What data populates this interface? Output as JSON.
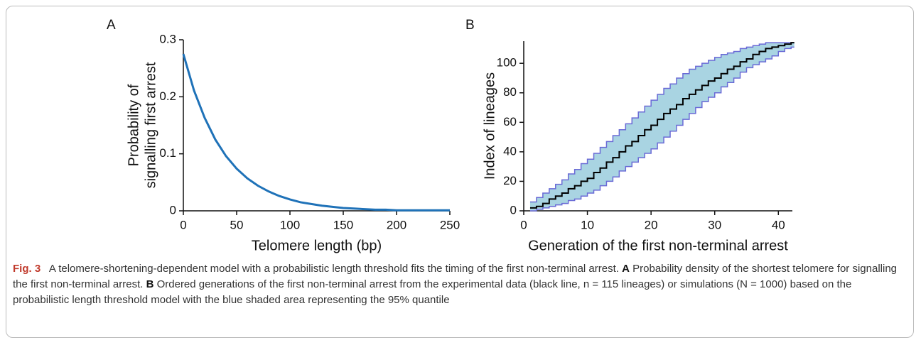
{
  "chart_data": [
    {
      "type": "line",
      "panel": "A",
      "x_label": "Telomere length (bp)",
      "y_label": [
        "Probability of",
        "signalling first arrest"
      ],
      "x": [
        0,
        10,
        20,
        30,
        40,
        50,
        60,
        70,
        80,
        90,
        100,
        110,
        120,
        130,
        140,
        150,
        160,
        170,
        180,
        190,
        200,
        210,
        220,
        230,
        240,
        250
      ],
      "values": [
        0.275,
        0.211,
        0.163,
        0.125,
        0.096,
        0.074,
        0.057,
        0.044,
        0.034,
        0.026,
        0.02,
        0.015,
        0.012,
        0.009,
        0.007,
        0.005,
        0.004,
        0.003,
        0.002,
        0.002,
        0.001,
        0.001,
        0.001,
        0.001,
        0.001,
        0.001
      ],
      "color": "#1f72b8",
      "xlim": [
        0,
        250
      ],
      "ylim": [
        0,
        0.3
      ],
      "xticks": [
        0,
        50,
        100,
        150,
        200,
        250
      ],
      "yticks": [
        0,
        0.1,
        0.2,
        0.3
      ]
    },
    {
      "type": "step",
      "panel": "B",
      "x_label": "Generation of the first non-terminal arrest",
      "y_label": "Index of lineages",
      "x": [
        1,
        2,
        3,
        4,
        5,
        6,
        7,
        8,
        9,
        10,
        11,
        12,
        13,
        14,
        15,
        16,
        17,
        18,
        19,
        20,
        21,
        22,
        23,
        24,
        25,
        26,
        27,
        28,
        29,
        30,
        31,
        32,
        33,
        34,
        35,
        36,
        37,
        38,
        39,
        40,
        41,
        42
      ],
      "series": [
        {
          "name": "experimental data",
          "color": "#000000",
          "values": [
            2,
            3,
            5,
            8,
            10,
            12,
            15,
            17,
            20,
            22,
            26,
            29,
            33,
            36,
            40,
            44,
            47,
            51,
            55,
            58,
            62,
            66,
            69,
            72,
            76,
            79,
            82,
            85,
            88,
            90,
            93,
            96,
            98,
            101,
            103,
            106,
            108,
            110,
            111,
            112,
            113,
            114
          ]
        },
        {
          "name": "95% quantile upper",
          "color": "#6a6ad6",
          "values": [
            6,
            9,
            12,
            15,
            18,
            21,
            25,
            28,
            32,
            35,
            39,
            43,
            47,
            51,
            55,
            59,
            63,
            67,
            71,
            75,
            79,
            83,
            86,
            90,
            93,
            96,
            98,
            100,
            102,
            104,
            106,
            107,
            108,
            110,
            111,
            112,
            113,
            114,
            114,
            114,
            114,
            114
          ]
        },
        {
          "name": "95% quantile lower",
          "color": "#6a6ad6",
          "values": [
            0,
            1,
            2,
            3,
            4,
            5,
            7,
            8,
            10,
            12,
            14,
            17,
            20,
            23,
            27,
            30,
            33,
            36,
            39,
            42,
            46,
            50,
            54,
            58,
            62,
            66,
            70,
            74,
            77,
            80,
            84,
            87,
            90,
            94,
            97,
            99,
            101,
            103,
            105,
            108,
            110,
            111
          ]
        }
      ],
      "band_color": "#a9d4e2",
      "xlim": [
        0,
        42.2
      ],
      "ylim": [
        0,
        115
      ],
      "xticks": [
        0,
        10,
        20,
        30,
        40
      ],
      "yticks": [
        0,
        20,
        40,
        60,
        80,
        100
      ]
    }
  ],
  "caption": {
    "label": "Fig. 3",
    "parts": [
      "A telomere-shortening-dependent model with a probabilistic length threshold fits the timing of the first non-terminal arrest.",
      "A",
      "Probability density of the shortest telomere for signalling the first non-terminal arrest.",
      "B",
      "Ordered generations of the first non-terminal arrest from the experimental data (black line, n = 115 lineages) or simulations (N = 1000) based on the probabilistic length threshold model with the blue shaded area representing the 95% quantile"
    ]
  }
}
